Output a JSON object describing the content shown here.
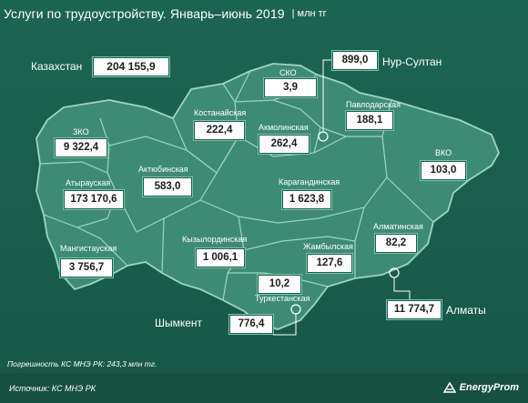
{
  "header": {
    "title": "Услуги по трудоустройству. Январь–июнь 2019",
    "unit": "| млн тг"
  },
  "kazakhstan": {
    "label": "Казахстан",
    "value": "204 155,9"
  },
  "regions": {
    "sko": {
      "label": "СКО",
      "value": "3,9"
    },
    "nur_sultan": {
      "label": "Нур-Султан",
      "value": "899,0"
    },
    "kostanay": {
      "label": "Костанайская",
      "value": "222,4"
    },
    "akmola": {
      "label": "Акмолинская",
      "value": "262,4"
    },
    "pavlodar": {
      "label": "Павлодарская",
      "value": "188,1"
    },
    "zko": {
      "label": "ЗКО",
      "value": "9 322,4"
    },
    "aktobe": {
      "label": "Актюбинская",
      "value": "583,0"
    },
    "vko": {
      "label": "ВКО",
      "value": "103,0"
    },
    "atyrau": {
      "label": "Атырауская",
      "value": "173 170,6"
    },
    "karaganda": {
      "label": "Карагандинская",
      "value": "1 623,8"
    },
    "almaty_reg": {
      "label": "Алматинская",
      "value": "82,2"
    },
    "mangystau": {
      "label": "Мангистауская",
      "value": "3 756,7"
    },
    "kyzylorda": {
      "label": "Кызылординская",
      "value": "1 006,1"
    },
    "zhambyl": {
      "label": "Жамбылская",
      "value": "127,6"
    },
    "turkestan": {
      "label": "Туркестанская",
      "value": "10,2"
    },
    "shymkent": {
      "label": "Шымкент",
      "value": "776,4"
    },
    "almaty": {
      "label": "Алматы",
      "value": "11 774,7"
    }
  },
  "note": "Погрешность КС МНЭ РК:  243,3  млн тг.",
  "footer": {
    "source": "Источник: КС МНЭ РК",
    "logo_text": "EnergyProm"
  },
  "colors": {
    "background": "#1a5f4f",
    "region_fill": "#3d8b74",
    "region_border": "#9fd4c1",
    "box_fill": "#ffffff"
  }
}
